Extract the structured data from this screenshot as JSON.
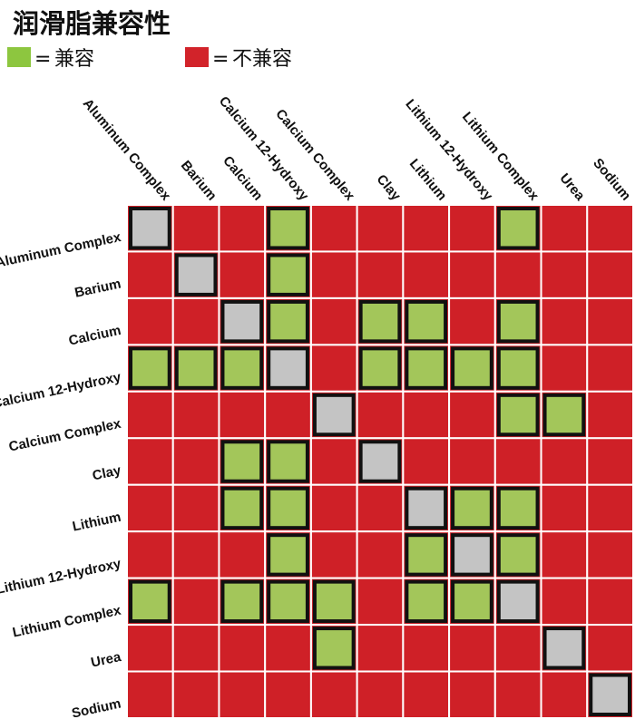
{
  "title": "润滑脂兼容性",
  "legend": [
    {
      "symbol": "=",
      "label": "兼容",
      "color": "#8dc63f"
    },
    {
      "symbol": "=",
      "label": "不兼容",
      "color": "#d2232a"
    }
  ],
  "colors": {
    "compatible": "#a3c65a",
    "incompatible": "#cf2027",
    "same": "#c4c4c4",
    "legend_compatible": "#8dc63f",
    "legend_incompatible": "#d2232a"
  },
  "chart_data": {
    "type": "heatmap",
    "title": "润滑脂兼容性",
    "categories": [
      "Aluminum Complex",
      "Barium",
      "Calcium",
      "Calcium 12-Hydroxy",
      "Calcium Complex",
      "Clay",
      "Lithium",
      "Lithium 12-Hydroxy",
      "Lithium Complex",
      "Urea",
      "Sodium"
    ],
    "value_key": {
      "0": "不兼容",
      "1": "兼容",
      "2": "same"
    },
    "matrix": [
      [
        2,
        0,
        0,
        1,
        0,
        0,
        0,
        0,
        1,
        0,
        0
      ],
      [
        0,
        2,
        0,
        1,
        0,
        0,
        0,
        0,
        0,
        0,
        0
      ],
      [
        0,
        0,
        2,
        1,
        0,
        1,
        1,
        0,
        1,
        0,
        0
      ],
      [
        1,
        1,
        1,
        2,
        0,
        1,
        1,
        1,
        1,
        0,
        0
      ],
      [
        0,
        0,
        0,
        0,
        2,
        0,
        0,
        0,
        1,
        1,
        0
      ],
      [
        0,
        0,
        1,
        1,
        0,
        2,
        0,
        0,
        0,
        0,
        0
      ],
      [
        0,
        0,
        1,
        1,
        0,
        0,
        2,
        1,
        1,
        0,
        0
      ],
      [
        0,
        0,
        0,
        1,
        0,
        0,
        1,
        2,
        1,
        0,
        0
      ],
      [
        1,
        0,
        1,
        1,
        1,
        0,
        1,
        1,
        2,
        0,
        0
      ],
      [
        0,
        0,
        0,
        0,
        1,
        0,
        0,
        0,
        0,
        2,
        0
      ],
      [
        0,
        0,
        0,
        0,
        0,
        0,
        0,
        0,
        0,
        0,
        2
      ]
    ]
  }
}
